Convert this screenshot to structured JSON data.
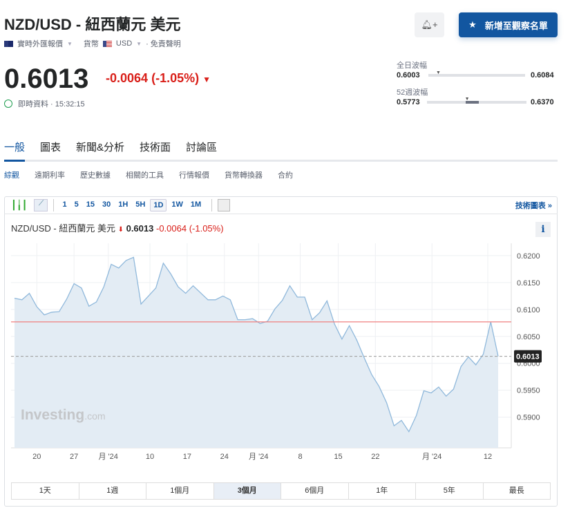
{
  "header": {
    "title": "NZD/USD - 紐西蘭元 美元",
    "quote_type": "實時外匯報價",
    "currency_label": "貨幣",
    "currency": "USD",
    "disclaimer": "· 免責聲明",
    "price": "0.6013",
    "change": "-0.0064",
    "change_pct": "(-1.05%)",
    "realtime_label": "即時資料 · 15:32:15",
    "watchlist_button": "新增至觀察名單",
    "alert_icon": "bell-plus-icon"
  },
  "ranges": {
    "day_label": "全日波幅",
    "day_low": "0.6003",
    "day_high": "0.6084",
    "day_position": 0.1,
    "week52_label": "52週波幅",
    "week52_low": "0.5773",
    "week52_high": "0.6370",
    "week52_position": 0.4
  },
  "tabs": [
    {
      "label": "一般",
      "active": true
    },
    {
      "label": "圖表"
    },
    {
      "label": "新聞&分析"
    },
    {
      "label": "技術面"
    },
    {
      "label": "討論區"
    }
  ],
  "subtabs": [
    {
      "label": "綜觀",
      "active": true
    },
    {
      "label": "遠期利率"
    },
    {
      "label": "歷史數據"
    },
    {
      "label": "相關的工具"
    },
    {
      "label": "行情報價"
    },
    {
      "label": "貨幣轉換器"
    },
    {
      "label": "合約"
    }
  ],
  "toolbar": {
    "intervals": [
      "1",
      "5",
      "15",
      "30",
      "1H",
      "5H",
      "1D",
      "1W",
      "1M"
    ],
    "selected": "1D",
    "tech_chart_link": "技術圖表 »"
  },
  "chart_header": {
    "name": "NZD/USD - 紐西蘭元 美元",
    "price": "0.6013",
    "change": "-0.0064",
    "change_pct": "(-1.05%)",
    "info": "i"
  },
  "watermark": {
    "brand": "Investing",
    "suffix": ".com"
  },
  "range_buttons": [
    "1天",
    "1週",
    "1個月",
    "3個月",
    "6個月",
    "1年",
    "5年",
    "最長"
  ],
  "range_selected": "3個月",
  "colors": {
    "accent": "#1256a0",
    "negative": "#d91e18",
    "line": "#8fb8db",
    "fill": "#e3ecf4",
    "ref_line": "#f08080"
  },
  "chart_data": {
    "type": "area",
    "values": [
      0.6121,
      0.6118,
      0.613,
      0.6105,
      0.609,
      0.6095,
      0.6096,
      0.6119,
      0.6148,
      0.614,
      0.6106,
      0.6114,
      0.6142,
      0.6184,
      0.6177,
      0.6191,
      0.6197,
      0.611,
      0.6125,
      0.614,
      0.6186,
      0.6166,
      0.6142,
      0.613,
      0.6144,
      0.6131,
      0.6118,
      0.6118,
      0.6125,
      0.6118,
      0.6081,
      0.6081,
      0.6083,
      0.6074,
      0.6078,
      0.6101,
      0.6117,
      0.6144,
      0.6123,
      0.6123,
      0.6081,
      0.6094,
      0.6116,
      0.6073,
      0.6045,
      0.607,
      0.6043,
      0.601,
      0.5979,
      0.5957,
      0.5927,
      0.5884,
      0.5894,
      0.5873,
      0.5903,
      0.5949,
      0.5945,
      0.5956,
      0.5939,
      0.5952,
      0.5994,
      0.6012,
      0.5997,
      0.6017,
      0.6077,
      0.6013
    ],
    "x_ticks": [
      {
        "label": "20",
        "at": 3
      },
      {
        "label": "27",
        "at": 8
      },
      {
        "label": "月 '24",
        "at": 12.6
      },
      {
        "label": "10",
        "at": 18.2
      },
      {
        "label": "17",
        "at": 23.2
      },
      {
        "label": "24",
        "at": 28.2
      },
      {
        "label": "月 '24",
        "at": 32.8
      },
      {
        "label": "8",
        "at": 38.4
      },
      {
        "label": "15",
        "at": 43.5
      },
      {
        "label": "22",
        "at": 48.5
      },
      {
        "label": "月 '24",
        "at": 56.1
      },
      {
        "label": "12",
        "at": 63.6
      }
    ],
    "y_ticks": [
      "0.6200",
      "0.6150",
      "0.6100",
      "0.6050",
      "0.6000",
      "0.5950",
      "0.5900"
    ],
    "ylim": [
      0.5843,
      0.6223
    ],
    "reference_line": 0.6077,
    "last_value_label": "0.6013",
    "grid": true
  }
}
